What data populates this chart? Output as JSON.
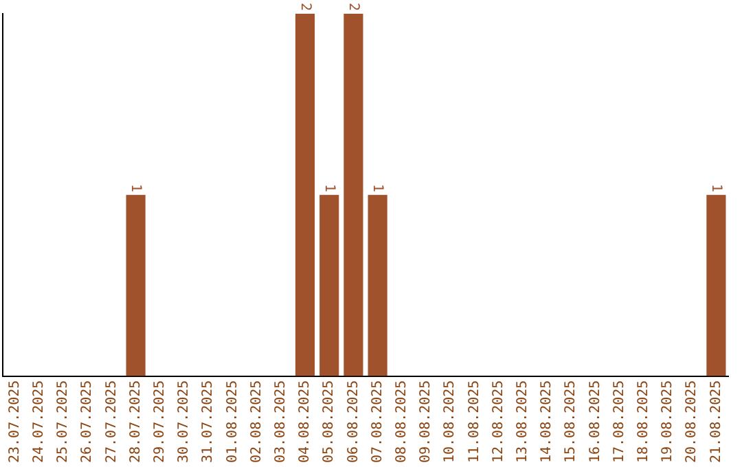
{
  "chart_data": {
    "type": "bar",
    "categories": [
      "23.07.2025",
      "24.07.2025",
      "25.07.2025",
      "26.07.2025",
      "27.07.2025",
      "28.07.2025",
      "29.07.2025",
      "30.07.2025",
      "31.07.2025",
      "01.08.2025",
      "02.08.2025",
      "03.08.2025",
      "04.08.2025",
      "05.08.2025",
      "06.08.2025",
      "07.08.2025",
      "08.08.2025",
      "09.08.2025",
      "10.08.2025",
      "11.08.2025",
      "12.08.2025",
      "13.08.2025",
      "14.08.2025",
      "15.08.2025",
      "16.08.2025",
      "17.08.2025",
      "18.08.2025",
      "19.08.2025",
      "20.08.2025",
      "21.08.2025"
    ],
    "values": [
      0,
      0,
      0,
      0,
      0,
      1,
      0,
      0,
      0,
      0,
      0,
      0,
      2,
      1,
      2,
      1,
      0,
      0,
      0,
      0,
      0,
      0,
      0,
      0,
      0,
      0,
      0,
      0,
      0,
      1
    ],
    "value_labels": [
      null,
      null,
      null,
      null,
      null,
      "1",
      null,
      null,
      null,
      null,
      null,
      null,
      "2",
      "1",
      "2",
      "1",
      null,
      null,
      null,
      null,
      null,
      null,
      null,
      null,
      null,
      null,
      null,
      null,
      null,
      "1"
    ],
    "color": "#a0522d",
    "grid": false,
    "legend": false
  }
}
